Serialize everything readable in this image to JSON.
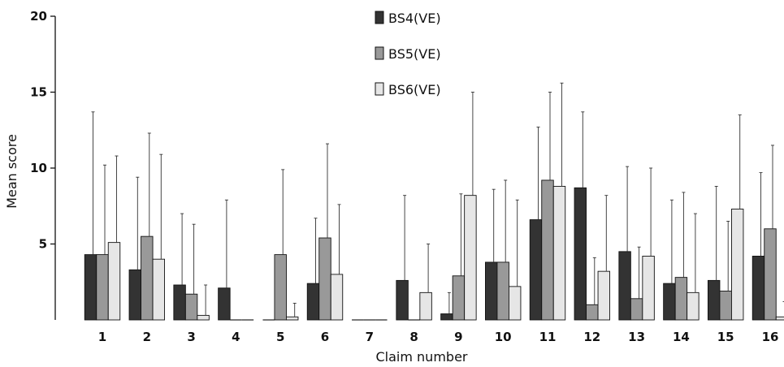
{
  "chart_data": {
    "type": "bar",
    "xlabel": "Claim number",
    "ylabel": "Mean score",
    "ylim": [
      0,
      20
    ],
    "yticks": [
      5,
      10,
      15,
      20
    ],
    "legend_position": "top-center",
    "error_bars": true,
    "categories": [
      "1",
      "2",
      "3",
      "4",
      "5",
      "6",
      "7",
      "8",
      "9",
      "10",
      "11",
      "12",
      "13",
      "14",
      "15",
      "16"
    ],
    "series": [
      {
        "name": "BS4(VE)",
        "color": "#333333",
        "values": [
          4.3,
          3.3,
          2.3,
          2.1,
          0,
          2.4,
          0,
          2.6,
          0.4,
          3.8,
          6.6,
          8.7,
          4.5,
          2.4,
          2.6,
          4.2
        ],
        "upper": [
          13.7,
          9.4,
          7.0,
          7.9,
          0,
          6.7,
          0,
          8.2,
          1.8,
          8.6,
          12.7,
          13.7,
          10.1,
          7.9,
          8.8,
          9.7
        ]
      },
      {
        "name": "BS5(VE)",
        "color": "#999999",
        "values": [
          4.3,
          5.5,
          1.7,
          0,
          4.3,
          5.4,
          0,
          0,
          2.9,
          3.8,
          9.2,
          1.0,
          1.4,
          2.8,
          1.9,
          6.0
        ],
        "upper": [
          10.2,
          12.3,
          6.3,
          0,
          9.9,
          11.6,
          0,
          0,
          8.3,
          9.2,
          15.0,
          4.1,
          4.8,
          8.4,
          6.5,
          11.5
        ]
      },
      {
        "name": "BS6(VE)",
        "color": "#e6e6e6",
        "values": [
          5.1,
          4.0,
          0.3,
          0,
          0.2,
          3.0,
          0,
          1.8,
          8.2,
          2.2,
          8.8,
          3.2,
          4.2,
          1.8,
          7.3,
          0.2
        ],
        "upper": [
          10.8,
          10.9,
          2.3,
          0,
          1.1,
          7.6,
          0,
          5.0,
          15.0,
          7.9,
          15.6,
          8.2,
          10.0,
          7.0,
          13.5,
          1.2
        ]
      }
    ]
  }
}
